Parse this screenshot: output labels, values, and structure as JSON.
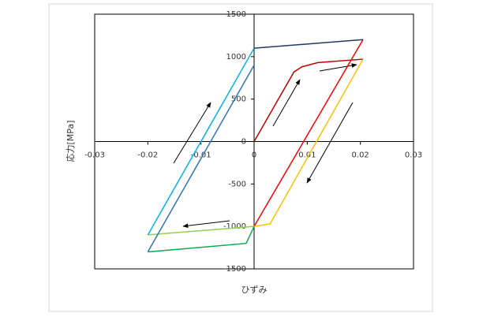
{
  "chart_data": {
    "type": "line",
    "x_label": "ひずみ",
    "y_label": "応力[MPa]",
    "xlim": [
      -0.03,
      0.03
    ],
    "xticks": [
      -0.03,
      -0.02,
      -0.01,
      0,
      0.01,
      0.02,
      0.03
    ],
    "ylim": [
      -1500,
      1500
    ],
    "yticks": [
      -1500,
      -1000,
      -500,
      0,
      500,
      1000,
      1500
    ],
    "grid": false,
    "series": [
      {
        "color": "#c00000",
        "x": [
          0,
          0.0075,
          0.009,
          0.012,
          0.0205
        ],
        "values": [
          0,
          820,
          880,
          930,
          970
        ]
      },
      {
        "color": "#ff0000",
        "x": [
          0,
          0.0205
        ],
        "values": [
          -1000,
          1200
        ]
      },
      {
        "color": "#ffc000",
        "x": [
          0.0205,
          0.003,
          0
        ],
        "values": [
          970,
          -970,
          -1000
        ]
      },
      {
        "color": "#92d050",
        "x": [
          0,
          -0.02
        ],
        "values": [
          -1000,
          -1100
        ]
      },
      {
        "color": "#00b0f0",
        "x": [
          -0.02,
          0
        ],
        "values": [
          -1100,
          1100
        ]
      },
      {
        "color": "#203864",
        "x": [
          0,
          0.0205
        ],
        "values": [
          1100,
          1200
        ]
      },
      {
        "color": "#00b050",
        "x": [
          -0.02,
          -0.0015,
          0
        ],
        "values": [
          -1300,
          -1200,
          -1000
        ]
      },
      {
        "color": "#2e75b6",
        "x": [
          -0.02,
          0
        ],
        "values": [
          -1300,
          900
        ]
      }
    ]
  }
}
